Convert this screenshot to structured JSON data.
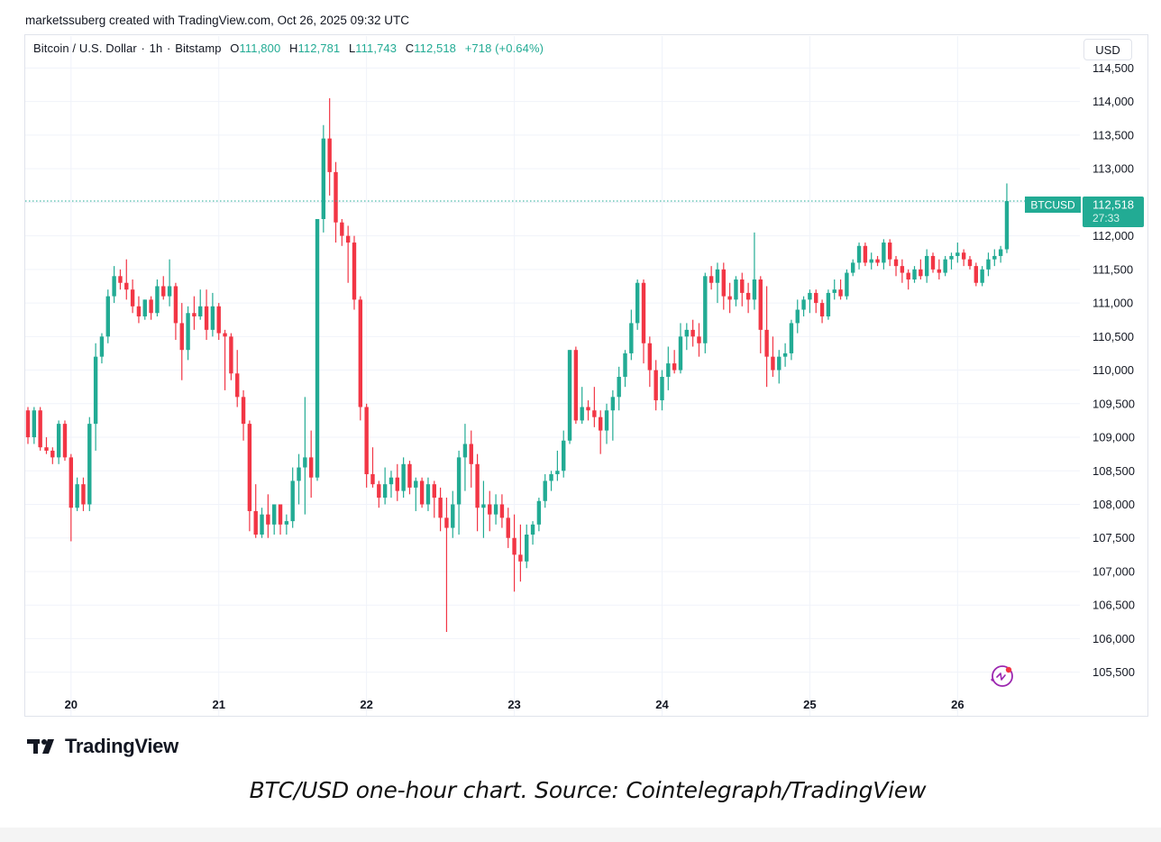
{
  "credit": "marketssuberg created with TradingView.com, Oct 26, 2025 09:32 UTC",
  "legend": {
    "symbol": "Bitcoin / U.S. Dollar",
    "interval": "1h",
    "exchange": "Bitstamp",
    "open_label": "O",
    "open": "111,800",
    "high_label": "H",
    "high": "112,781",
    "low_label": "L",
    "low": "111,743",
    "close_label": "C",
    "close": "112,518",
    "change": "+718 (+0.64%)"
  },
  "currency": "USD",
  "price_tag": {
    "ticker": "BTCUSD",
    "price": "112,518",
    "countdown": "27:33"
  },
  "brand": "TradingView",
  "caption": "BTC/USD one-hour chart. Source: Cointelegraph/TradingView",
  "colors": {
    "up": "#22ab94",
    "down": "#f23645",
    "grid": "#f0f3fa",
    "axis_text": "#131722",
    "tag_bg": "#22ab94"
  },
  "chart_data": {
    "type": "candlestick",
    "title": "Bitcoin / U.S. Dollar · 1h · Bitstamp",
    "ylabel": "USD",
    "ylim": [
      105200,
      114600
    ],
    "y_ticks": [
      105500,
      106000,
      106500,
      107000,
      107500,
      108000,
      108500,
      109000,
      109500,
      110000,
      110500,
      111000,
      111500,
      112000,
      112500,
      113000,
      113500,
      114000,
      114500
    ],
    "x_ticks": [
      {
        "label": "20",
        "index": 7
      },
      {
        "label": "21",
        "index": 31
      },
      {
        "label": "22",
        "index": 55
      },
      {
        "label": "23",
        "index": 79
      },
      {
        "label": "24",
        "index": 103
      },
      {
        "label": "25",
        "index": 127
      },
      {
        "label": "26",
        "index": 151
      }
    ],
    "last_price": 112518,
    "ohlc": [
      [
        109400,
        109450,
        108900,
        109000
      ],
      [
        109000,
        109450,
        108900,
        109400
      ],
      [
        109400,
        109450,
        108800,
        108850
      ],
      [
        108850,
        109000,
        108750,
        108800
      ],
      [
        108800,
        108850,
        108600,
        108700
      ],
      [
        108700,
        109250,
        108600,
        109200
      ],
      [
        109200,
        109250,
        108650,
        108700
      ],
      [
        108700,
        108750,
        107450,
        107950
      ],
      [
        107950,
        108400,
        107900,
        108300
      ],
      [
        108300,
        108400,
        107900,
        108000
      ],
      [
        108000,
        109300,
        107900,
        109200
      ],
      [
        109200,
        110400,
        108800,
        110200
      ],
      [
        110200,
        110550,
        110100,
        110500
      ],
      [
        110500,
        111200,
        110400,
        111100
      ],
      [
        111100,
        111550,
        111000,
        111400
      ],
      [
        111400,
        111500,
        111200,
        111300
      ],
      [
        111300,
        111650,
        111050,
        111200
      ],
      [
        111200,
        111350,
        110850,
        110950
      ],
      [
        110950,
        111100,
        110700,
        110800
      ],
      [
        110800,
        111050,
        110750,
        111050
      ],
      [
        111050,
        111100,
        110750,
        110850
      ],
      [
        110850,
        111350,
        110800,
        111250
      ],
      [
        111250,
        111400,
        111050,
        111100
      ],
      [
        111100,
        111650,
        110950,
        111250
      ],
      [
        111250,
        111300,
        110450,
        110700
      ],
      [
        110700,
        111000,
        109850,
        110300
      ],
      [
        110300,
        110950,
        110150,
        110850
      ],
      [
        110850,
        111100,
        110600,
        110800
      ],
      [
        110800,
        111200,
        110750,
        110950
      ],
      [
        110950,
        111200,
        110450,
        110600
      ],
      [
        110600,
        111150,
        110500,
        110950
      ],
      [
        110950,
        111000,
        110450,
        110550
      ],
      [
        110550,
        110600,
        109700,
        110500
      ],
      [
        110500,
        110550,
        109850,
        109950
      ],
      [
        109950,
        110300,
        109450,
        109600
      ],
      [
        109600,
        109700,
        108950,
        109200
      ],
      [
        109200,
        109250,
        107600,
        107900
      ],
      [
        107900,
        108300,
        107500,
        107550
      ],
      [
        107550,
        107950,
        107500,
        107850
      ],
      [
        107850,
        108150,
        107500,
        107700
      ],
      [
        107700,
        108000,
        107550,
        108000
      ],
      [
        108000,
        108000,
        107550,
        107700
      ],
      [
        107700,
        107850,
        107550,
        107750
      ],
      [
        107750,
        108550,
        107650,
        108350
      ],
      [
        108350,
        108750,
        108000,
        108550
      ],
      [
        108550,
        109600,
        107850,
        108700
      ],
      [
        108700,
        109100,
        108100,
        108400
      ],
      [
        108400,
        112250,
        108350,
        112250
      ],
      [
        112250,
        113650,
        112050,
        113450
      ],
      [
        113450,
        114050,
        112600,
        112950
      ],
      [
        112950,
        113100,
        111900,
        112200
      ],
      [
        112200,
        112250,
        111850,
        112000
      ],
      [
        112000,
        112150,
        111300,
        111900
      ],
      [
        111900,
        112000,
        110900,
        111050
      ],
      [
        111050,
        111100,
        109250,
        109450
      ],
      [
        109450,
        109500,
        108250,
        108450
      ],
      [
        108450,
        108850,
        108250,
        108300
      ],
      [
        108300,
        108350,
        107950,
        108100
      ],
      [
        108100,
        108550,
        108000,
        108300
      ],
      [
        108300,
        108500,
        108100,
        108400
      ],
      [
        108400,
        108600,
        108050,
        108200
      ],
      [
        108200,
        108700,
        108100,
        108600
      ],
      [
        108600,
        108650,
        108150,
        108250
      ],
      [
        108250,
        108400,
        107900,
        108350
      ],
      [
        108350,
        108400,
        107950,
        108000
      ],
      [
        108000,
        108400,
        107900,
        108300
      ],
      [
        108300,
        108350,
        107800,
        108100
      ],
      [
        108100,
        108250,
        107600,
        107800
      ],
      [
        107800,
        108100,
        106100,
        107650
      ],
      [
        107650,
        108200,
        107500,
        108000
      ],
      [
        108000,
        108800,
        107550,
        108700
      ],
      [
        108700,
        109200,
        108200,
        108900
      ],
      [
        108900,
        109100,
        108250,
        108600
      ],
      [
        108600,
        108750,
        107600,
        107950
      ],
      [
        107950,
        108350,
        107500,
        108000
      ],
      [
        108000,
        108200,
        107600,
        107850
      ],
      [
        107850,
        108150,
        107700,
        108000
      ],
      [
        108000,
        108150,
        107650,
        107800
      ],
      [
        107800,
        107950,
        107350,
        107500
      ],
      [
        107500,
        107850,
        106700,
        107250
      ],
      [
        107250,
        107700,
        106850,
        107150
      ],
      [
        107150,
        107700,
        107050,
        107550
      ],
      [
        107550,
        107750,
        107400,
        107700
      ],
      [
        107700,
        108100,
        107600,
        108050
      ],
      [
        108050,
        108450,
        107950,
        108350
      ],
      [
        108350,
        108500,
        108200,
        108450
      ],
      [
        108450,
        108800,
        108350,
        108500
      ],
      [
        108500,
        109100,
        108400,
        108950
      ],
      [
        108950,
        110300,
        108900,
        110300
      ],
      [
        110300,
        110350,
        109200,
        109250
      ],
      [
        109250,
        109750,
        109200,
        109450
      ],
      [
        109450,
        109550,
        109250,
        109400
      ],
      [
        109400,
        109750,
        109150,
        109300
      ],
      [
        109300,
        109400,
        108750,
        109100
      ],
      [
        109100,
        109500,
        108900,
        109400
      ],
      [
        109400,
        109700,
        108950,
        109600
      ],
      [
        109600,
        110050,
        109400,
        109900
      ],
      [
        109900,
        110300,
        109750,
        110250
      ],
      [
        110250,
        110900,
        110150,
        110700
      ],
      [
        110700,
        111350,
        110600,
        111300
      ],
      [
        111300,
        111350,
        110100,
        110400
      ],
      [
        110400,
        110500,
        109750,
        110000
      ],
      [
        110000,
        110150,
        109400,
        109550
      ],
      [
        109550,
        110000,
        109400,
        109900
      ],
      [
        109900,
        110350,
        109700,
        110100
      ],
      [
        110100,
        110300,
        109950,
        110000
      ],
      [
        110000,
        110700,
        109950,
        110500
      ],
      [
        110500,
        110700,
        110300,
        110600
      ],
      [
        110600,
        110750,
        110350,
        110500
      ],
      [
        110500,
        110700,
        110200,
        110400
      ],
      [
        110400,
        111450,
        110250,
        111400
      ],
      [
        111400,
        111550,
        111200,
        111300
      ],
      [
        111300,
        111600,
        111000,
        111500
      ],
      [
        111500,
        111600,
        110900,
        111100
      ],
      [
        111100,
        111300,
        110850,
        111050
      ],
      [
        111050,
        111400,
        110950,
        111350
      ],
      [
        111350,
        111450,
        110950,
        111150
      ],
      [
        111150,
        111300,
        110850,
        111050
      ],
      [
        111050,
        112050,
        110900,
        111350
      ],
      [
        111350,
        111400,
        110250,
        110600
      ],
      [
        110600,
        111250,
        109750,
        110200
      ],
      [
        110200,
        110500,
        109900,
        110000
      ],
      [
        110000,
        110300,
        109800,
        110200
      ],
      [
        110200,
        110400,
        110050,
        110250
      ],
      [
        110250,
        110750,
        110150,
        110700
      ],
      [
        110700,
        111050,
        110550,
        110900
      ],
      [
        110900,
        111100,
        110800,
        111050
      ],
      [
        111050,
        111200,
        110850,
        111150
      ],
      [
        111150,
        111200,
        110850,
        111000
      ],
      [
        111000,
        111050,
        110700,
        110800
      ],
      [
        110800,
        111200,
        110750,
        111150
      ],
      [
        111150,
        111350,
        111050,
        111200
      ],
      [
        111200,
        111350,
        111050,
        111100
      ],
      [
        111100,
        111500,
        111050,
        111450
      ],
      [
        111450,
        111650,
        111400,
        111600
      ],
      [
        111600,
        111900,
        111500,
        111850
      ],
      [
        111850,
        111900,
        111550,
        111600
      ],
      [
        111600,
        111750,
        111500,
        111650
      ],
      [
        111650,
        111700,
        111550,
        111600
      ],
      [
        111600,
        111950,
        111500,
        111900
      ],
      [
        111900,
        111950,
        111550,
        111650
      ],
      [
        111650,
        111700,
        111400,
        111550
      ],
      [
        111550,
        111650,
        111300,
        111450
      ],
      [
        111450,
        111500,
        111200,
        111350
      ],
      [
        111350,
        111550,
        111300,
        111500
      ],
      [
        111500,
        111650,
        111350,
        111400
      ],
      [
        111400,
        111800,
        111300,
        111700
      ],
      [
        111700,
        111750,
        111450,
        111500
      ],
      [
        111500,
        111650,
        111350,
        111450
      ],
      [
        111450,
        111700,
        111400,
        111650
      ],
      [
        111650,
        111750,
        111500,
        111700
      ],
      [
        111700,
        111900,
        111600,
        111750
      ],
      [
        111750,
        111800,
        111550,
        111650
      ],
      [
        111650,
        111700,
        111500,
        111550
      ],
      [
        111550,
        111600,
        111250,
        111300
      ],
      [
        111300,
        111550,
        111250,
        111500
      ],
      [
        111500,
        111750,
        111400,
        111650
      ],
      [
        111650,
        111800,
        111550,
        111700
      ],
      [
        111700,
        111850,
        111600,
        111800
      ],
      [
        111800,
        112781,
        111743,
        112518
      ]
    ]
  }
}
